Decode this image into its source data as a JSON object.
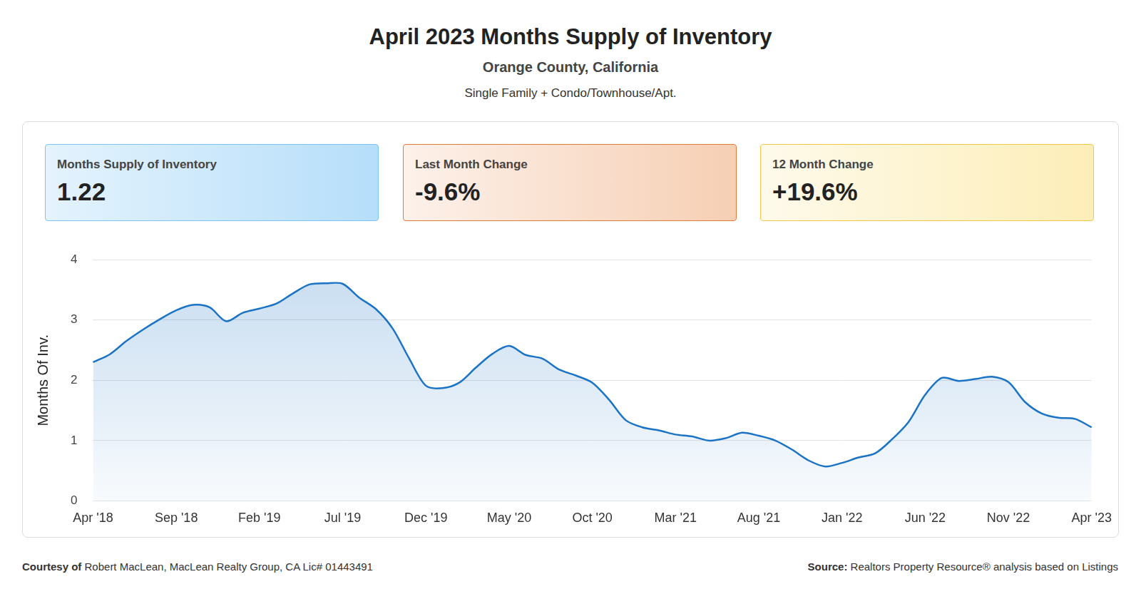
{
  "header": {
    "title": "April 2023 Months Supply of Inventory",
    "subtitle": "Orange County, California",
    "caption": "Single Family + Condo/Townhouse/Apt."
  },
  "cards": [
    {
      "label": "Months Supply of Inventory",
      "value": "1.22"
    },
    {
      "label": "Last Month Change",
      "value": "-9.6%"
    },
    {
      "label": "12 Month Change",
      "value": "+19.6%"
    }
  ],
  "chart_data": {
    "type": "area",
    "y_label": "Months Of Inv.",
    "categories": [
      "Apr '18",
      null,
      null,
      null,
      null,
      "Sep '18",
      null,
      null,
      null,
      null,
      "Feb '19",
      null,
      null,
      null,
      null,
      "Jul '19",
      null,
      null,
      null,
      null,
      "Dec '19",
      null,
      null,
      null,
      null,
      "May '20",
      null,
      null,
      null,
      null,
      "Oct '20",
      null,
      null,
      null,
      null,
      "Mar '21",
      null,
      null,
      null,
      null,
      "Aug '21",
      null,
      null,
      null,
      null,
      "Jan '22",
      null,
      null,
      null,
      null,
      "Jun '22",
      null,
      null,
      null,
      null,
      "Nov '22",
      null,
      null,
      null,
      null,
      "Apr '23"
    ],
    "values": [
      2.3,
      2.43,
      2.65,
      2.84,
      3.01,
      3.16,
      3.25,
      3.21,
      2.98,
      3.12,
      3.19,
      3.27,
      3.44,
      3.59,
      3.61,
      3.6,
      3.37,
      3.18,
      2.86,
      2.36,
      1.91,
      1.87,
      1.96,
      2.21,
      2.44,
      2.57,
      2.42,
      2.36,
      2.18,
      2.08,
      1.96,
      1.68,
      1.34,
      1.22,
      1.17,
      1.1,
      1.07,
      1.0,
      1.04,
      1.13,
      1.08,
      1.0,
      0.85,
      0.67,
      0.57,
      0.63,
      0.72,
      0.79,
      1.02,
      1.31,
      1.76,
      2.04,
      1.99,
      2.02,
      2.06,
      1.97,
      1.64,
      1.45,
      1.38,
      1.36,
      1.22
    ],
    "color": "#1a73c4",
    "ylim": [
      0,
      4
    ],
    "yticks": [
      0,
      1,
      2,
      3,
      4
    ],
    "grid": true
  },
  "footer": {
    "left_label": "Courtesy of",
    "left_text": "Robert MacLean, MacLean Realty Group, CA Lic# 01443491",
    "right_label": "Source:",
    "right_text": "Realtors Property Resource® analysis based on Listings"
  }
}
